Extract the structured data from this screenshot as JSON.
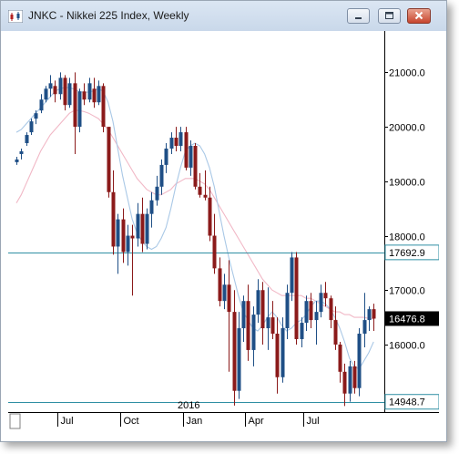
{
  "window": {
    "title": "JNKC - Nikkei 225 Index, Weekly",
    "minimize_icon": "minimize-icon",
    "maximize_icon": "maximize-icon",
    "close_icon": "close-icon",
    "app_icon": "chart-app-icon"
  },
  "colors": {
    "up_candle": "#1f4f86",
    "down_candle": "#8b1a1a",
    "ma_short": "#a9c8e6",
    "ma_long": "#f1b8c6",
    "level_line": "#2f8fa3",
    "current_price_bg": "#000000",
    "close_button": "#c7452e"
  },
  "chart_data": {
    "type": "candlestick",
    "title": "",
    "period": "Weekly",
    "y_ticks": [
      "21000.0",
      "20000.0",
      "19000.0",
      "18000.0",
      "17000.0",
      "16000.0"
    ],
    "y_tick_values": [
      21000,
      20000,
      19000,
      18000,
      17000,
      16000
    ],
    "ylim": [
      14760,
      21760
    ],
    "x_tick_labels": [
      "Jul",
      "Oct",
      "Jan",
      "Apr",
      "Jul"
    ],
    "x_tick_index": [
      9,
      22,
      35,
      48,
      60
    ],
    "year_label": "2016",
    "year_label_index": 35,
    "horizontal_levels": [
      {
        "label": "17692.9",
        "value": 17692.9
      },
      {
        "label": "14948.7",
        "value": 14948.7
      }
    ],
    "current_price": {
      "label": "16476.8",
      "value": 16476.8
    },
    "candles_ohlc": [
      [
        19350,
        19450,
        19300,
        19400
      ],
      [
        19500,
        19600,
        19400,
        19550
      ],
      [
        19700,
        19900,
        19650,
        19850
      ],
      [
        19900,
        20150,
        19850,
        20100
      ],
      [
        20150,
        20300,
        20050,
        20250
      ],
      [
        20300,
        20600,
        20250,
        20500
      ],
      [
        20500,
        20750,
        20450,
        20700
      ],
      [
        20700,
        20950,
        20550,
        20800
      ],
      [
        20750,
        20850,
        20450,
        20600
      ],
      [
        20600,
        21000,
        20500,
        20900
      ],
      [
        20900,
        20950,
        20300,
        20400
      ],
      [
        20400,
        20900,
        20350,
        20800
      ],
      [
        20800,
        21000,
        19500,
        20000
      ],
      [
        20000,
        20700,
        19900,
        20650
      ],
      [
        20650,
        20800,
        20400,
        20500
      ],
      [
        20500,
        20900,
        20450,
        20800
      ],
      [
        20700,
        20900,
        20350,
        20450
      ],
      [
        20450,
        20850,
        20400,
        20750
      ],
      [
        20750,
        20800,
        19900,
        20000
      ],
      [
        20000,
        19300,
        18700,
        18800
      ],
      [
        18800,
        19200,
        17650,
        17800
      ],
      [
        17800,
        18400,
        17300,
        18300
      ],
      [
        18300,
        18500,
        17500,
        17700
      ],
      [
        17700,
        18200,
        17450,
        18000
      ],
      [
        18000,
        18200,
        16900,
        17950
      ],
      [
        17950,
        18600,
        17800,
        18400
      ],
      [
        18400,
        18700,
        17700,
        17850
      ],
      [
        17850,
        18500,
        17750,
        18400
      ],
      [
        18400,
        18800,
        18150,
        18650
      ],
      [
        18650,
        19100,
        18550,
        18900
      ],
      [
        18900,
        19400,
        18750,
        19300
      ],
      [
        19300,
        19700,
        19150,
        19600
      ],
      [
        19600,
        19900,
        19500,
        19800
      ],
      [
        19800,
        20000,
        19550,
        19650
      ],
      [
        19650,
        20000,
        19550,
        19900
      ],
      [
        19900,
        20000,
        19200,
        19250
      ],
      [
        19250,
        19750,
        19100,
        19650
      ],
      [
        19650,
        19700,
        18850,
        18900
      ],
      [
        18900,
        19150,
        18700,
        18750
      ],
      [
        18750,
        19200,
        18650,
        18700
      ],
      [
        18700,
        18900,
        17900,
        18000
      ],
      [
        18000,
        18400,
        17300,
        17400
      ],
      [
        17400,
        17600,
        16700,
        16800
      ],
      [
        16800,
        17300,
        16650,
        17100
      ],
      [
        17100,
        17550,
        15500,
        16600
      ],
      [
        16600,
        17000,
        14880,
        15150
      ],
      [
        15150,
        16600,
        15000,
        16300
      ],
      [
        16300,
        16900,
        16050,
        16800
      ],
      [
        16800,
        17100,
        15700,
        15900
      ],
      [
        15900,
        16700,
        15600,
        16550
      ],
      [
        16550,
        17200,
        16400,
        17000
      ],
      [
        17000,
        17150,
        16000,
        16300
      ],
      [
        16300,
        17050,
        15900,
        16500
      ],
      [
        16500,
        16800,
        16100,
        16200
      ],
      [
        16200,
        16500,
        15100,
        15400
      ],
      [
        15400,
        16500,
        15300,
        16300
      ],
      [
        16300,
        17100,
        16100,
        16950
      ],
      [
        16950,
        17700,
        16800,
        17600
      ],
      [
        17600,
        17700,
        16000,
        16100
      ],
      [
        16100,
        16500,
        15950,
        16400
      ],
      [
        16400,
        16900,
        16250,
        16800
      ],
      [
        16800,
        16950,
        16300,
        16450
      ],
      [
        16450,
        16800,
        16000,
        16600
      ],
      [
        16600,
        17100,
        16500,
        16950
      ],
      [
        16950,
        17150,
        16700,
        16850
      ],
      [
        16850,
        16900,
        16300,
        16450
      ],
      [
        16450,
        16700,
        15900,
        16000
      ],
      [
        16000,
        16050,
        15300,
        15500
      ],
      [
        15500,
        15650,
        14870,
        15100
      ],
      [
        15100,
        15700,
        14950,
        15600
      ],
      [
        15600,
        15700,
        15100,
        15200
      ],
      [
        15200,
        16300,
        15050,
        16200
      ],
      [
        16200,
        16950,
        15950,
        16450
      ],
      [
        16450,
        16700,
        16250,
        16650
      ],
      [
        16650,
        16750,
        16250,
        16476.8
      ]
    ],
    "ma_short_values": [
      19900,
      19950,
      20050,
      20150,
      20250,
      20350,
      20450,
      20550,
      20650,
      20700,
      20720,
      20720,
      20690,
      20650,
      20630,
      20640,
      20660,
      20700,
      20650,
      20450,
      20100,
      19600,
      19100,
      18700,
      18300,
      18050,
      17900,
      17800,
      17750,
      17800,
      17950,
      18150,
      18500,
      18900,
      19250,
      19550,
      19650,
      19700,
      19650,
      19500,
      19250,
      18900,
      18450,
      18000,
      17600,
      17250,
      16900,
      16600,
      16450,
      16300,
      16250,
      16350,
      16500,
      16600,
      16500,
      16350,
      16250,
      16300,
      16400,
      16450,
      16550,
      16700,
      16800,
      16800,
      16750,
      16650,
      16500,
      16300,
      16050,
      15750,
      15600,
      15550,
      15700,
      15850,
      16050
    ],
    "ma_long_values": [
      18600,
      18750,
      18950,
      19150,
      19350,
      19550,
      19700,
      19850,
      19950,
      20050,
      20150,
      20250,
      20300,
      20300,
      20280,
      20250,
      20200,
      20150,
      20050,
      19950,
      19800,
      19650,
      19500,
      19350,
      19200,
      19050,
      18950,
      18850,
      18800,
      18750,
      18750,
      18800,
      18850,
      18950,
      19000,
      19050,
      19050,
      19050,
      19000,
      18950,
      18850,
      18700,
      18550,
      18400,
      18250,
      18100,
      17950,
      17800,
      17650,
      17500,
      17350,
      17200,
      17100,
      17000,
      16950,
      16900,
      16900,
      16900,
      16900,
      16900,
      16850,
      16850,
      16800,
      16750,
      16700,
      16650,
      16600,
      16600,
      16550,
      16550,
      16500,
      16500,
      16500,
      16480,
      16470
    ]
  }
}
